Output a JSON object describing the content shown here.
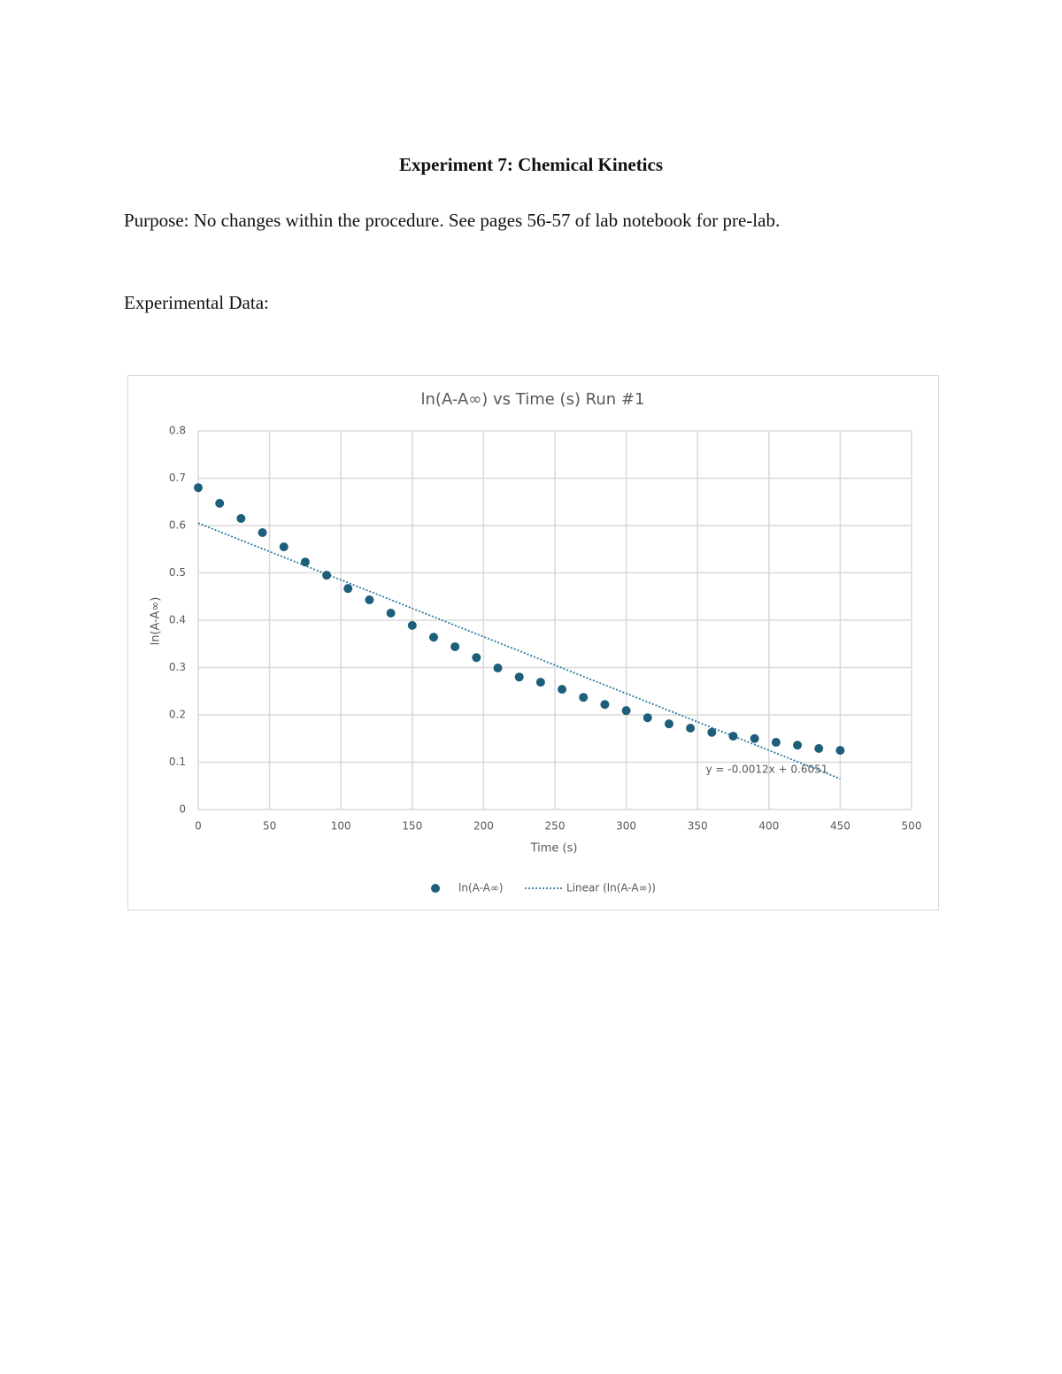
{
  "document": {
    "title": "Experiment 7: Chemical Kinetics",
    "purpose": "Purpose: No changes within the procedure. See pages 56-57 of lab notebook for pre-lab.",
    "data_heading": "Experimental Data:"
  },
  "chart_data": {
    "type": "scatter",
    "title": "ln(A-A∞) vs Time (s) Run #1",
    "x_label": "Time (s)",
    "y_label": "ln(A-A∞)",
    "x": [
      0,
      15,
      30,
      45,
      60,
      75,
      90,
      105,
      120,
      135,
      150,
      165,
      180,
      195,
      210,
      225,
      240,
      255,
      270,
      285,
      300,
      315,
      330,
      345,
      360,
      375,
      390,
      405,
      420,
      435,
      450
    ],
    "series": [
      {
        "name": "ln(A-A∞)",
        "color": "#1d5e7b",
        "values": [
          0.68,
          0.647,
          0.615,
          0.585,
          0.555,
          0.523,
          0.495,
          0.467,
          0.443,
          0.415,
          0.389,
          0.364,
          0.344,
          0.321,
          0.299,
          0.28,
          0.269,
          0.254,
          0.237,
          0.222,
          0.209,
          0.194,
          0.181,
          0.172,
          0.163,
          0.155,
          0.15,
          0.142,
          0.136,
          0.129,
          0.125
        ]
      }
    ],
    "trendline": {
      "name": "Linear (ln(A-A∞))",
      "slope": -0.0012,
      "intercept": 0.6051,
      "label": "y = -0.0012x + 0.6051",
      "color": "#2e7aa0"
    },
    "xlim": [
      0,
      500
    ],
    "xticks": [
      0,
      50,
      100,
      150,
      200,
      250,
      300,
      350,
      400,
      450,
      500
    ],
    "ylim": [
      0,
      0.8
    ],
    "yticks": [
      0,
      0.1,
      0.2,
      0.3,
      0.4,
      0.5,
      0.6,
      0.7,
      0.8
    ],
    "grid": true,
    "legend": "bottom"
  }
}
